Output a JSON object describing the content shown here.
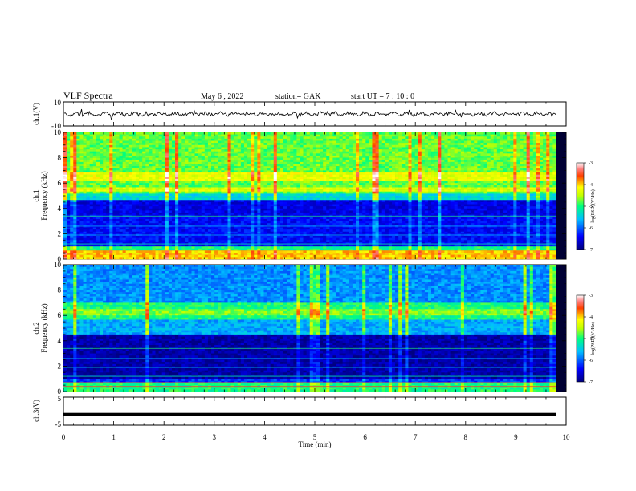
{
  "header": {
    "title": "VLF Spectra",
    "date": "May 6 , 2022",
    "station": "station= GAK",
    "start": "start UT = 7 : 10 : 0"
  },
  "chart_data": [
    {
      "type": "line",
      "ylabel": "ch.1(V)",
      "ylim": [
        -10,
        10
      ],
      "yticks": [
        "10",
        "-10"
      ],
      "xlim": [
        0,
        10
      ],
      "description_level": "noisy waveform near 0 V",
      "color": "#000000"
    },
    {
      "type": "heatmap",
      "ylabel_1": "ch.1",
      "ylabel_2": "Frequency (kHz)",
      "ylim": [
        0,
        10
      ],
      "yticks": [
        "0",
        "2",
        "4",
        "6",
        "8",
        "10"
      ],
      "xlim": [
        0,
        9.8
      ],
      "colorbar": {
        "label": "log(PSD)(V²/Hz)",
        "ticks": [
          "-3",
          "-4",
          "-5",
          "-6",
          "-7"
        ],
        "range": [
          -7,
          -3
        ]
      }
    },
    {
      "type": "heatmap",
      "ylabel_1": "ch.2",
      "ylabel_2": "Frequency (kHz)",
      "ylim": [
        0,
        10
      ],
      "yticks": [
        "0",
        "2",
        "4",
        "6",
        "8",
        "10"
      ],
      "xlim": [
        0,
        9.8
      ],
      "colorbar": {
        "label": "log(PSD)(V²/Hz)",
        "ticks": [
          "-3",
          "-4",
          "-5",
          "-6",
          "-7"
        ],
        "range": [
          -7,
          -3
        ]
      }
    },
    {
      "type": "line",
      "ylabel": "ch.3(V)",
      "ylim": [
        -5,
        5
      ],
      "yticks": [
        "5",
        "-5"
      ],
      "constant_value": -1.2,
      "color": "#000000"
    }
  ],
  "xaxis": {
    "label": "Time (min)",
    "ticks": [
      "0",
      "1",
      "2",
      "3",
      "4",
      "5",
      "6",
      "7",
      "8",
      "9",
      "10"
    ],
    "range": [
      0,
      10
    ]
  }
}
